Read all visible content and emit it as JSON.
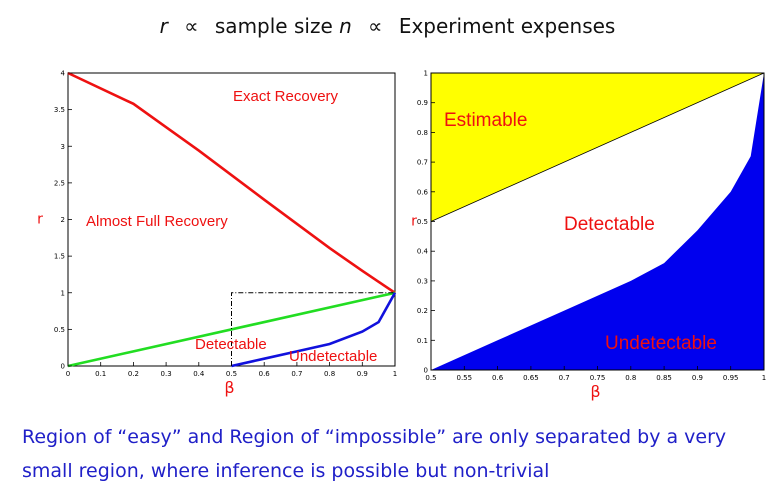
{
  "header": {
    "var_r": "r",
    "prop": "∝",
    "mid": "sample size",
    "var_n": "n",
    "right": "Experiment expenses"
  },
  "caption": {
    "line1": "Region of “easy” and Region of “impossible” are only separated by a very",
    "line2": "small region, where inference is possible but non-trivial"
  },
  "chart_data": [
    {
      "type": "line",
      "xlabel": "β",
      "ylabel": "r",
      "xlim": [
        0,
        1
      ],
      "ylim": [
        0,
        4
      ],
      "x_ticks": [
        "0",
        "0.1",
        "0.2",
        "0.3",
        "0.4",
        "0.5",
        "0.6",
        "0.7",
        "0.8",
        "0.9",
        "1"
      ],
      "y_ticks": [
        "0",
        "0.5",
        "1",
        "1.5",
        "2",
        "2.5",
        "3",
        "3.5",
        "4"
      ],
      "series": [
        {
          "color": "#ee1111",
          "x": [
            0,
            0.2,
            0.4,
            0.6,
            0.8,
            0.9,
            0.95,
            1
          ],
          "y": [
            4,
            3.58,
            2.94,
            2.27,
            1.61,
            1.3,
            1.15,
            1
          ]
        },
        {
          "color": "#22dd22",
          "x": [
            0,
            1
          ],
          "y": [
            0,
            1
          ]
        },
        {
          "color": "#1111dd",
          "x": [
            0.5,
            0.6,
            0.7,
            0.8,
            0.9,
            0.95,
            1
          ],
          "y": [
            0,
            0.1,
            0.2,
            0.3,
            0.47,
            0.6,
            1
          ]
        },
        {
          "color": "#000000",
          "style": "dash-dot",
          "x": [
            0.5,
            0.5,
            1
          ],
          "y": [
            0,
            1,
            1
          ]
        }
      ],
      "annotations": [
        "Exact Recovery",
        "Almost Full Recovery",
        "Detectable",
        "Undetectable"
      ]
    },
    {
      "type": "area",
      "xlabel": "β",
      "ylabel": "r",
      "xlim": [
        0.5,
        1
      ],
      "ylim": [
        0,
        1
      ],
      "x_ticks": [
        "0.5",
        "0.55",
        "0.6",
        "0.65",
        "0.7",
        "0.75",
        "0.8",
        "0.85",
        "0.9",
        "0.95",
        "1"
      ],
      "y_ticks": [
        "0",
        "0.1",
        "0.2",
        "0.3",
        "0.4",
        "0.5",
        "0.6",
        "0.7",
        "0.8",
        "0.9",
        "1"
      ],
      "regions": [
        {
          "label": "Estimable",
          "color": "#ffff00",
          "boundary_x": [
            0.5,
            1
          ],
          "boundary_y": [
            0.5,
            1
          ]
        },
        {
          "label": "Detectable",
          "color": "#ffffff"
        },
        {
          "label": "Undetectable",
          "color": "#0000ee",
          "boundary_x": [
            0.5,
            0.6,
            0.7,
            0.8,
            0.85,
            0.9,
            0.95,
            0.98,
            1
          ],
          "boundary_y": [
            0,
            0.1,
            0.2,
            0.3,
            0.36,
            0.47,
            0.6,
            0.72,
            1
          ]
        }
      ]
    }
  ]
}
